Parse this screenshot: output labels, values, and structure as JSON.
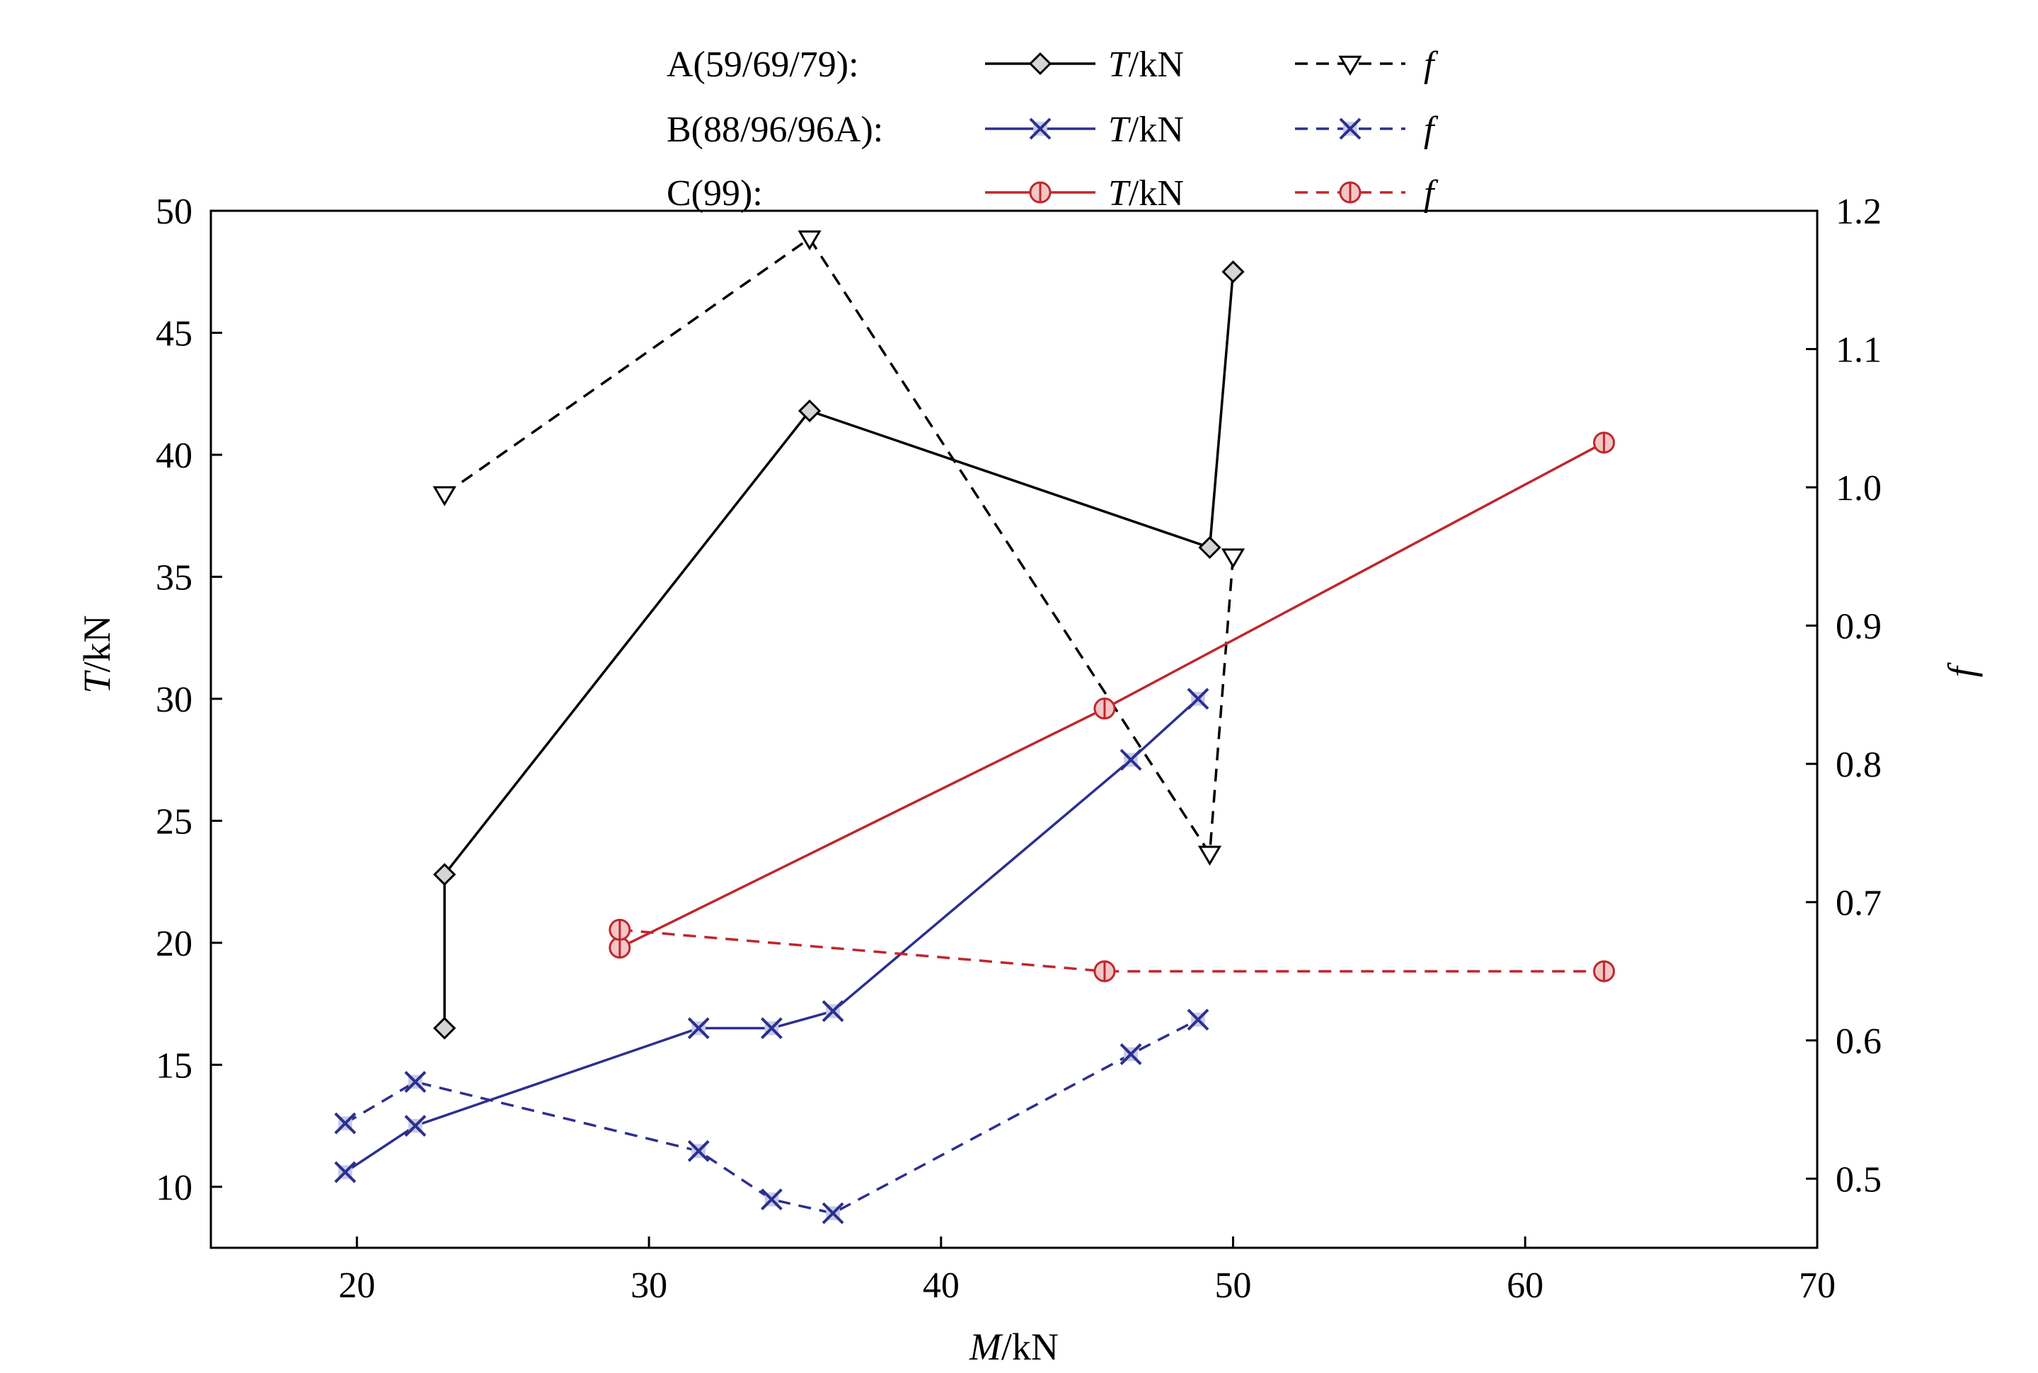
{
  "chart_data": {
    "type": "line",
    "xlabel": {
      "var": "M",
      "unit": "/kN"
    },
    "ylabel_left": {
      "var": "T",
      "unit": "/kN"
    },
    "ylabel_right": {
      "var": "f",
      "unit": ""
    },
    "xlim": [
      15,
      70
    ],
    "ylim_left": [
      7.5,
      50
    ],
    "ylim_right": [
      0.45,
      1.2
    ],
    "x_ticks": [
      20,
      30,
      40,
      50,
      60,
      70
    ],
    "y_left_ticks": [
      10,
      15,
      20,
      25,
      30,
      35,
      40,
      45,
      50
    ],
    "y_right_ticks": [
      "0.5",
      "0.6",
      "0.7",
      "0.8",
      "0.9",
      "1.0",
      "1.1",
      "1.2"
    ],
    "grid": false,
    "legend_position": "top-center",
    "legend_groups": [
      {
        "label": "A(59/69/79):",
        "t_text": "T",
        "t_unit": "/kN",
        "f_text": "f"
      },
      {
        "label": "B(88/96/96A):",
        "t_text": "T",
        "t_unit": "/kN",
        "f_text": "f"
      },
      {
        "label": "C(99):",
        "t_text": "T",
        "t_unit": "/kN",
        "f_text": "f"
      }
    ],
    "series": [
      {
        "name": "T/kN",
        "group": "A",
        "axis": "left",
        "marker": "diamond",
        "dash": false,
        "color": "#000000",
        "points": [
          [
            23.0,
            16.5
          ],
          [
            23.0,
            22.8
          ],
          [
            35.5,
            41.8
          ],
          [
            49.2,
            36.2
          ],
          [
            50.0,
            47.5
          ]
        ]
      },
      {
        "name": "f",
        "group": "A",
        "axis": "right",
        "marker": "triangle-down",
        "dash": true,
        "color": "#000000",
        "points": [
          [
            23.0,
            0.995
          ],
          [
            35.5,
            1.18
          ],
          [
            49.2,
            0.735
          ],
          [
            50.0,
            0.95
          ]
        ]
      },
      {
        "name": "T/kN",
        "group": "B",
        "axis": "left",
        "marker": "x",
        "dash": false,
        "color": "#2b2f8f",
        "points": [
          [
            19.6,
            10.6
          ],
          [
            22.0,
            12.5
          ],
          [
            31.7,
            16.5
          ],
          [
            34.2,
            16.5
          ],
          [
            36.3,
            17.2
          ],
          [
            46.5,
            27.5
          ],
          [
            48.8,
            30.0
          ]
        ]
      },
      {
        "name": "f",
        "group": "B",
        "axis": "right",
        "marker": "x",
        "dash": true,
        "color": "#2b2f8f",
        "points": [
          [
            19.6,
            0.54
          ],
          [
            22.0,
            0.57
          ],
          [
            31.7,
            0.52
          ],
          [
            34.2,
            0.485
          ],
          [
            36.3,
            0.475
          ],
          [
            46.5,
            0.59
          ],
          [
            48.8,
            0.615
          ]
        ]
      },
      {
        "name": "T/kN",
        "group": "C",
        "axis": "left",
        "marker": "circle-bar",
        "dash": false,
        "color": "#c0262c",
        "points": [
          [
            29.0,
            19.8
          ],
          [
            45.6,
            29.6
          ],
          [
            62.7,
            40.5
          ]
        ]
      },
      {
        "name": "f",
        "group": "C",
        "axis": "right",
        "marker": "circle-bar",
        "dash": true,
        "color": "#c0262c",
        "points": [
          [
            29.0,
            0.68
          ],
          [
            45.6,
            0.65
          ],
          [
            62.7,
            0.65
          ]
        ]
      }
    ]
  }
}
